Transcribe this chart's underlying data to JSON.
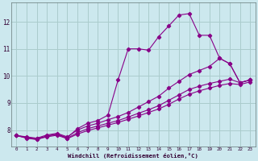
{
  "xlabel": "Windchill (Refroidissement éolien,°C)",
  "background_color": "#cce8ee",
  "grid_color": "#aacccc",
  "line_color": "#880088",
  "xlim": [
    -0.5,
    23.5
  ],
  "ylim": [
    7.4,
    12.7
  ],
  "xticks": [
    0,
    1,
    2,
    3,
    4,
    5,
    6,
    7,
    8,
    9,
    10,
    11,
    12,
    13,
    14,
    15,
    16,
    17,
    18,
    19,
    20,
    21,
    22,
    23
  ],
  "yticks": [
    8,
    9,
    10,
    11,
    12
  ],
  "lines": [
    {
      "x": [
        0,
        1,
        2,
        3,
        4,
        5,
        6,
        7,
        8,
        9,
        10,
        11,
        12,
        13,
        14,
        15,
        16,
        17,
        18,
        19,
        20,
        21,
        22,
        23
      ],
      "y": [
        7.8,
        7.7,
        7.65,
        7.78,
        7.85,
        7.72,
        8.05,
        8.25,
        8.35,
        8.55,
        9.85,
        11.0,
        11.0,
        10.95,
        11.45,
        11.85,
        12.25,
        12.3,
        11.5,
        11.5,
        10.65,
        10.45,
        9.75,
        9.85
      ]
    },
    {
      "x": [
        0,
        1,
        2,
        3,
        4,
        5,
        6,
        7,
        8,
        9,
        10,
        11,
        12,
        13,
        14,
        15,
        16,
        17,
        18,
        19,
        20,
        21,
        22,
        23
      ],
      "y": [
        7.8,
        7.75,
        7.7,
        7.82,
        7.88,
        7.75,
        8.0,
        8.15,
        8.25,
        8.38,
        8.5,
        8.65,
        8.85,
        9.05,
        9.25,
        9.55,
        9.8,
        10.05,
        10.2,
        10.35,
        10.65,
        10.45,
        9.75,
        9.85
      ]
    },
    {
      "x": [
        0,
        1,
        2,
        3,
        4,
        5,
        6,
        7,
        8,
        9,
        10,
        11,
        12,
        13,
        14,
        15,
        16,
        17,
        18,
        19,
        20,
        21,
        22,
        23
      ],
      "y": [
        7.8,
        7.73,
        7.68,
        7.78,
        7.84,
        7.7,
        7.9,
        8.05,
        8.15,
        8.25,
        8.35,
        8.48,
        8.62,
        8.75,
        8.9,
        9.1,
        9.3,
        9.5,
        9.62,
        9.72,
        9.8,
        9.88,
        9.75,
        9.85
      ]
    },
    {
      "x": [
        0,
        1,
        2,
        3,
        4,
        5,
        6,
        7,
        8,
        9,
        10,
        11,
        12,
        13,
        14,
        15,
        16,
        17,
        18,
        19,
        20,
        21,
        22,
        23
      ],
      "y": [
        7.8,
        7.71,
        7.66,
        7.75,
        7.81,
        7.68,
        7.85,
        7.98,
        8.08,
        8.18,
        8.28,
        8.4,
        8.52,
        8.65,
        8.78,
        8.95,
        9.15,
        9.32,
        9.45,
        9.55,
        9.65,
        9.72,
        9.68,
        9.78
      ]
    }
  ]
}
